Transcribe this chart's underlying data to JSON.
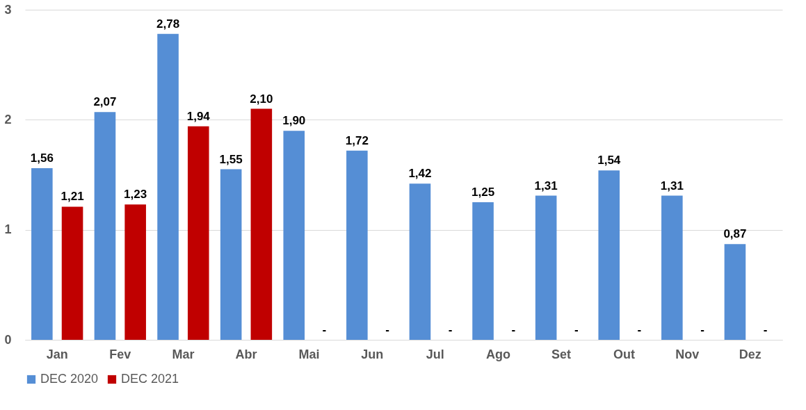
{
  "chart_data": {
    "type": "bar",
    "categories": [
      "Jan",
      "Fev",
      "Mar",
      "Abr",
      "Mai",
      "Jun",
      "Jul",
      "Ago",
      "Set",
      "Out",
      "Nov",
      "Dez"
    ],
    "series": [
      {
        "name": "DEC 2020",
        "color": "#558ed5",
        "values": [
          1.56,
          2.07,
          2.78,
          1.55,
          1.9,
          1.72,
          1.42,
          1.25,
          1.31,
          1.54,
          1.31,
          0.87
        ],
        "value_labels": [
          "1,56",
          "2,07",
          "2,78",
          "1,55",
          "1,90",
          "1,72",
          "1,42",
          "1,25",
          "1,31",
          "1,54",
          "1,31",
          "0,87"
        ]
      },
      {
        "name": "DEC 2021",
        "color": "#c00000",
        "values": [
          1.21,
          1.23,
          1.94,
          2.1,
          null,
          null,
          null,
          null,
          null,
          null,
          null,
          null
        ],
        "value_labels": [
          "1,21",
          "1,23",
          "1,94",
          "2,10",
          "-",
          "-",
          "-",
          "-",
          "-",
          "-",
          "-",
          "-"
        ]
      }
    ],
    "ylim": [
      0,
      3
    ],
    "yticks": [
      0,
      1,
      2,
      3
    ],
    "grid": "y",
    "legend": "bottom"
  }
}
